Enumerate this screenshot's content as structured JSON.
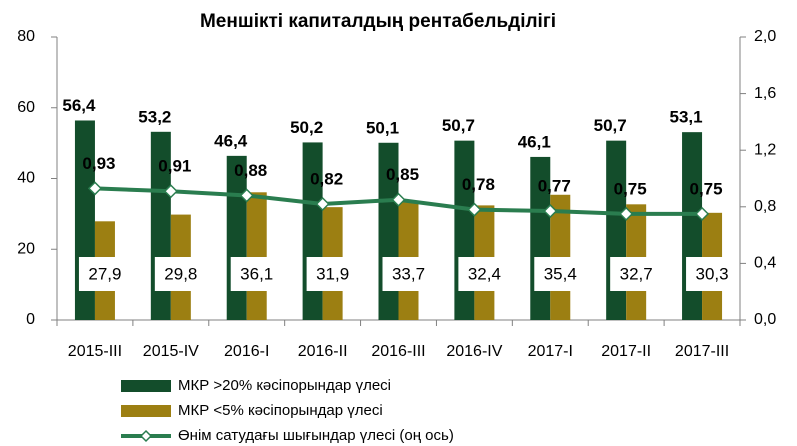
{
  "chart_data": {
    "type": "bar_line",
    "title": "Меншікті капиталдың рентабельділігі",
    "categories": [
      "2015-III",
      "2015-IV",
      "2016-I",
      "2016-II",
      "2016-III",
      "2016-IV",
      "2017-I",
      "2017-II",
      "2017-III"
    ],
    "series": [
      {
        "name": "МКР >20% кәсіпорындар үлесі",
        "color": "#134d2b",
        "kind": "bar",
        "values": [
          56.4,
          53.2,
          46.4,
          50.2,
          50.1,
          50.7,
          46.1,
          50.7,
          53.1
        ],
        "value_labels": [
          "56,4",
          "53,2",
          "46,4",
          "50,2",
          "50,1",
          "50,7",
          "46,1",
          "50,7",
          "53,1"
        ]
      },
      {
        "name": "МКР <5% кәсіпорындар үлесі",
        "color": "#9c7f12",
        "kind": "bar",
        "values": [
          27.9,
          29.8,
          36.1,
          31.9,
          33.7,
          32.4,
          35.4,
          32.7,
          30.3
        ],
        "value_labels": [
          "27,9",
          "29,8",
          "36,1",
          "31,9",
          "33,7",
          "32,4",
          "35,4",
          "32,7",
          "30,3"
        ]
      },
      {
        "name": "Өнім сатудағы шығындар үлесі (оң ось)",
        "color": "#2a7d4f",
        "kind": "line",
        "axis": "y2",
        "values": [
          0.93,
          0.91,
          0.88,
          0.82,
          0.85,
          0.78,
          0.77,
          0.75,
          0.75
        ],
        "value_labels": [
          "0,93",
          "0,91",
          "0,88",
          "0,82",
          "0,85",
          "0,78",
          "0,77",
          "0,75",
          "0,75"
        ]
      }
    ],
    "ylim": [
      0,
      80
    ],
    "yticks": [
      0,
      20,
      40,
      60,
      80
    ],
    "y2lim": [
      0,
      2
    ],
    "y2ticks": [
      {
        "value": 0,
        "label": "0,0"
      },
      {
        "value": 0.4,
        "label": "0,4"
      },
      {
        "value": 0.8,
        "label": "0,8"
      },
      {
        "value": 1.2,
        "label": "1,2"
      },
      {
        "value": 1.6,
        "label": "1,6"
      },
      {
        "value": 2,
        "label": "2,0"
      }
    ],
    "legend": "bottom"
  }
}
